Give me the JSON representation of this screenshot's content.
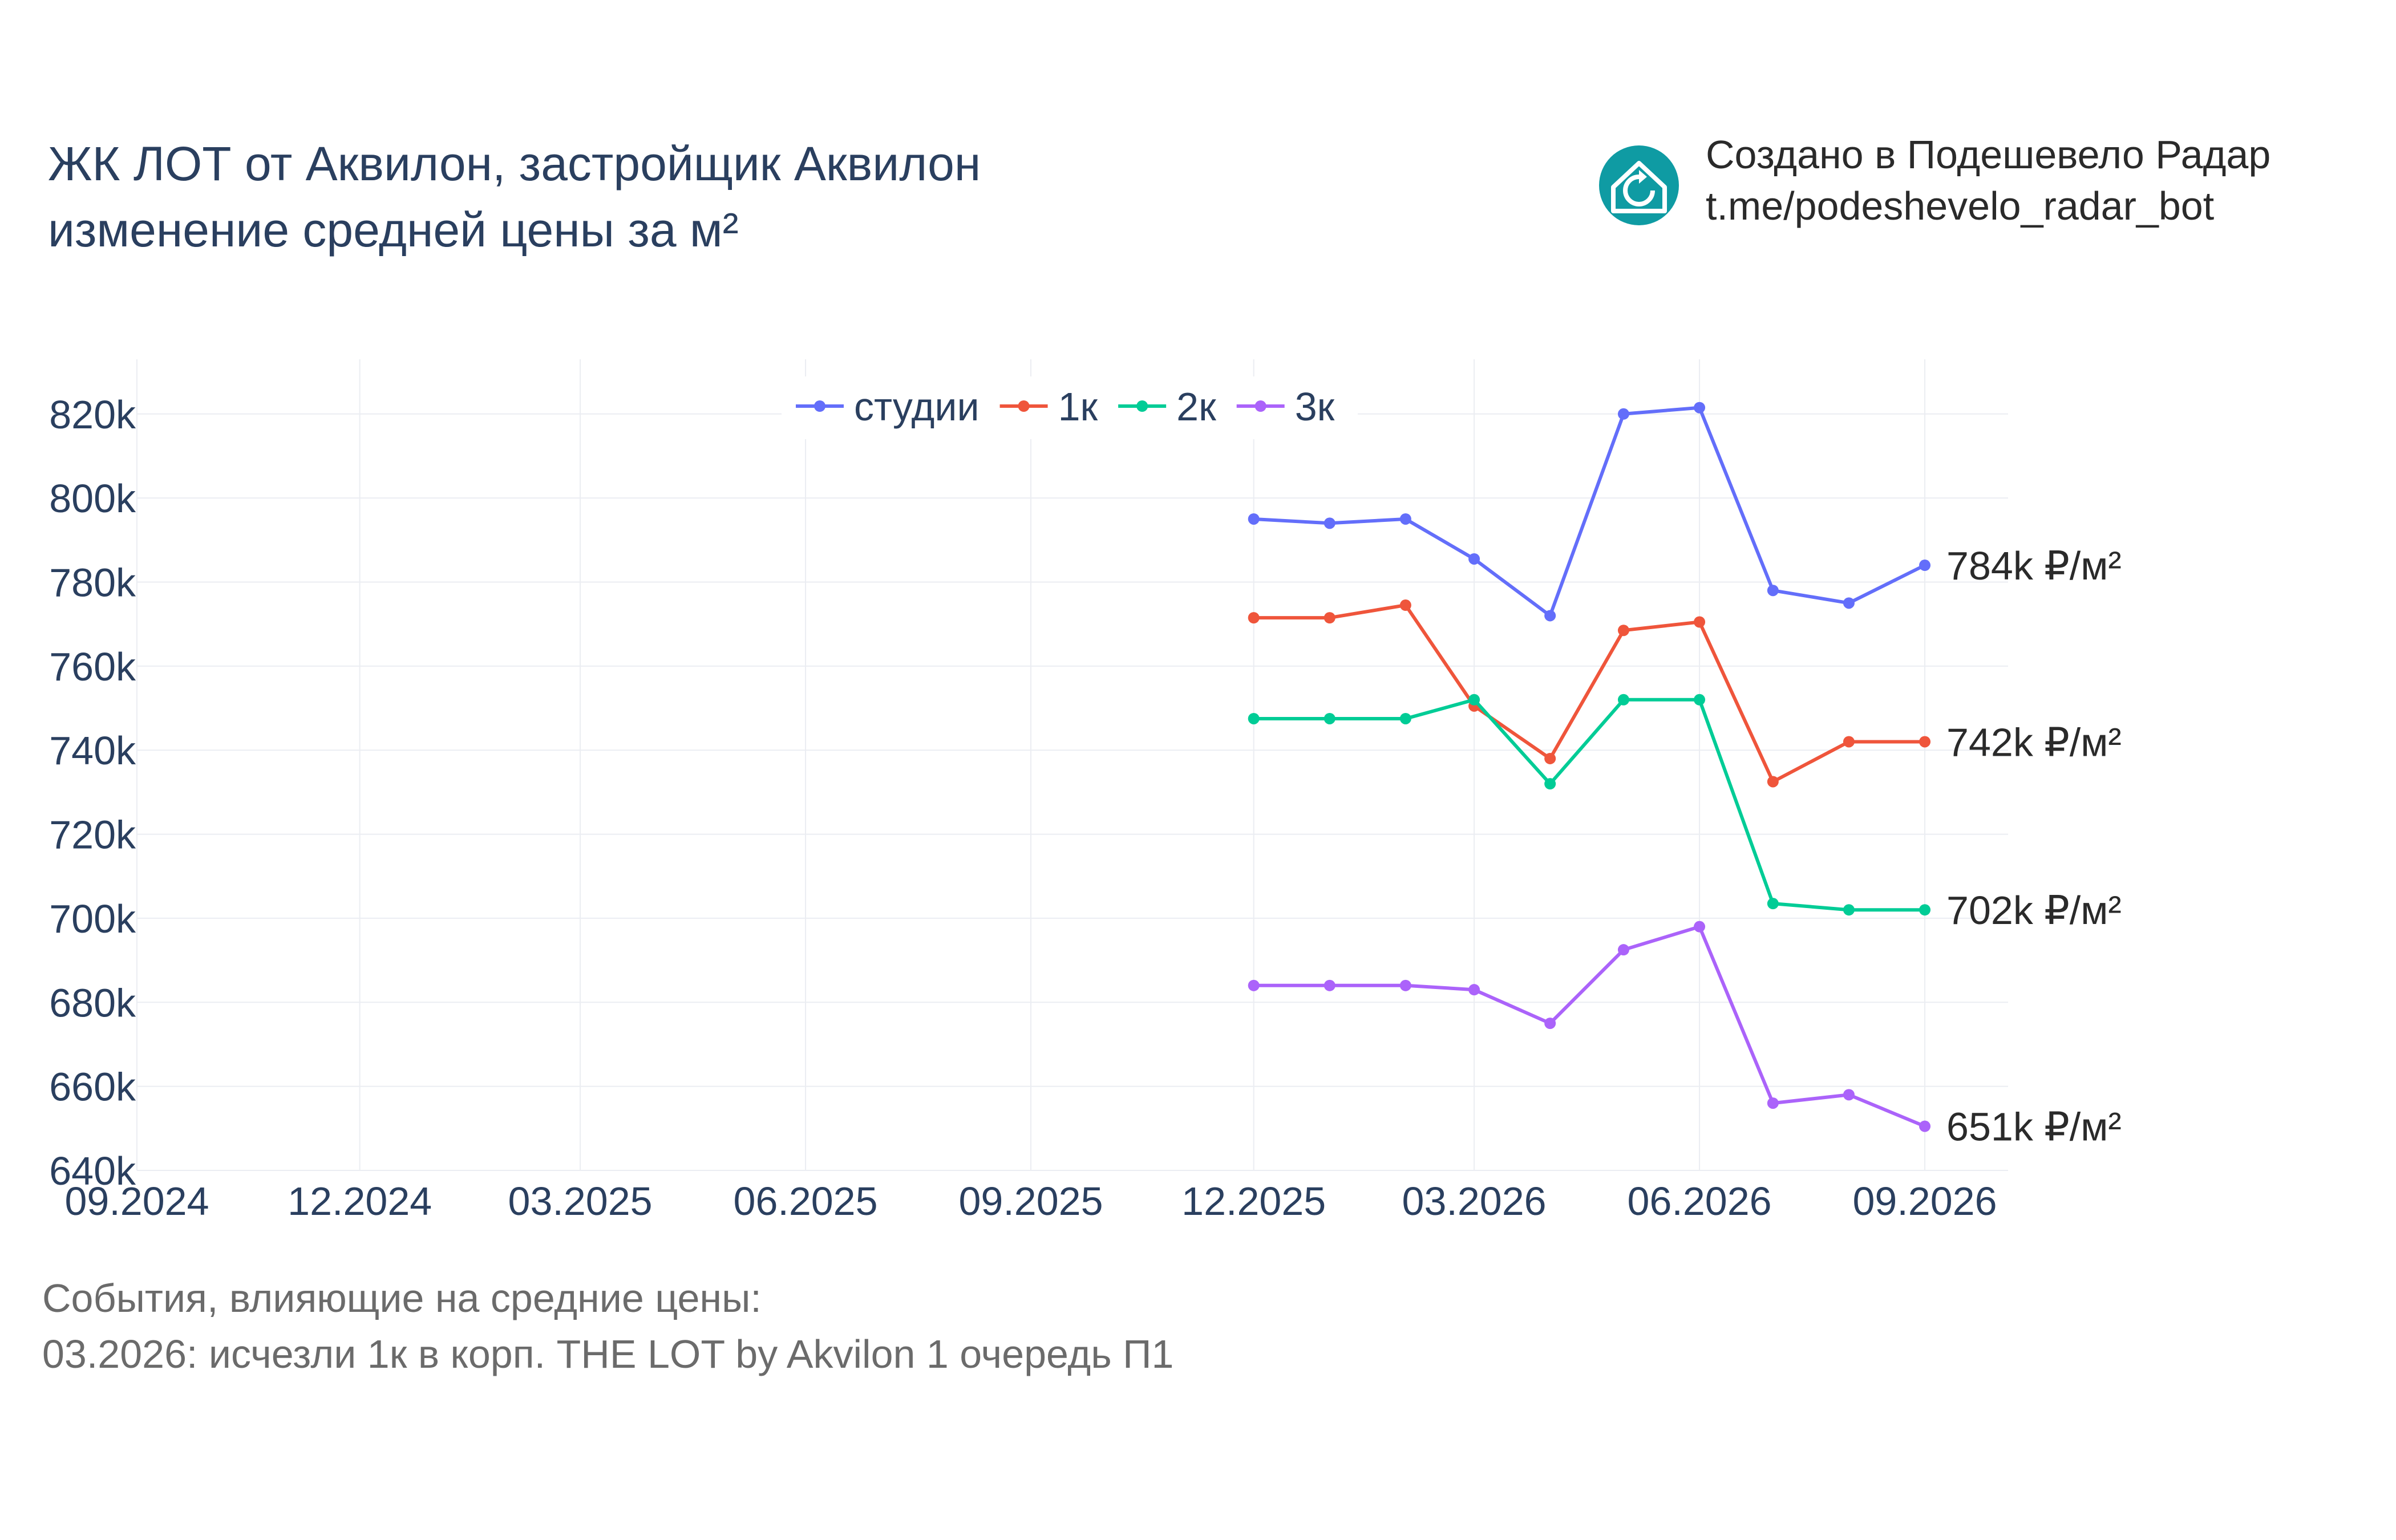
{
  "header": {
    "title_line1": "ЖК ЛОТ от Аквилон, застройщик Аквилон",
    "title_line2": "изменение средней цены за м²"
  },
  "brand": {
    "line1": "Создано в Подешевело Радар",
    "line2": "t.me/podeshevelo_radar_bot",
    "logo_icon": "house-refresh-icon",
    "logo_color": "#0f9ba3"
  },
  "events": {
    "heading": "События, влияющие на средние цены:",
    "items": [
      "03.2026: исчезли 1к в корп. THE LOT by Akvilon 1 очередь П1"
    ]
  },
  "chart_data": {
    "type": "line",
    "x_ticks": [
      "09.2024",
      "12.2024",
      "03.2025",
      "06.2025",
      "09.2025",
      "12.2025",
      "03.2026",
      "06.2026",
      "09.2026"
    ],
    "y_ticks": [
      "640k",
      "660k",
      "680k",
      "700k",
      "720k",
      "740k",
      "760k",
      "780k",
      "800k",
      "820k"
    ],
    "ylim": [
      640000,
      833000
    ],
    "xlim": [
      "2024-09-01",
      "2026-10-05"
    ],
    "grid": true,
    "legend_position": "top-center",
    "x": [
      "2025-12-01",
      "2026-01-01",
      "2026-02-01",
      "2026-03-01",
      "2026-04-01",
      "2026-05-01",
      "2026-06-01",
      "2026-07-01",
      "2026-08-01",
      "2026-09-01"
    ],
    "series": [
      {
        "name": "студии",
        "color": "#636efa",
        "end_label": "784k ₽/м²",
        "values": [
          795000,
          794000,
          795000,
          785500,
          772000,
          820000,
          821500,
          778000,
          775000,
          784000
        ]
      },
      {
        "name": "1к",
        "color": "#ef553b",
        "end_label": "742k ₽/м²",
        "values": [
          771500,
          771500,
          774500,
          750500,
          738000,
          768500,
          770500,
          732500,
          742000,
          742000
        ]
      },
      {
        "name": "2к",
        "color": "#00cc96",
        "end_label": "702k ₽/м²",
        "values": [
          747500,
          747500,
          747500,
          752000,
          732000,
          752000,
          752000,
          703500,
          702000,
          702000
        ]
      },
      {
        "name": "3к",
        "color": "#ab63fa",
        "end_label": "651k ₽/м²",
        "values": [
          684000,
          684000,
          684000,
          683000,
          675000,
          692500,
          698000,
          656000,
          658000,
          650500
        ]
      }
    ]
  }
}
